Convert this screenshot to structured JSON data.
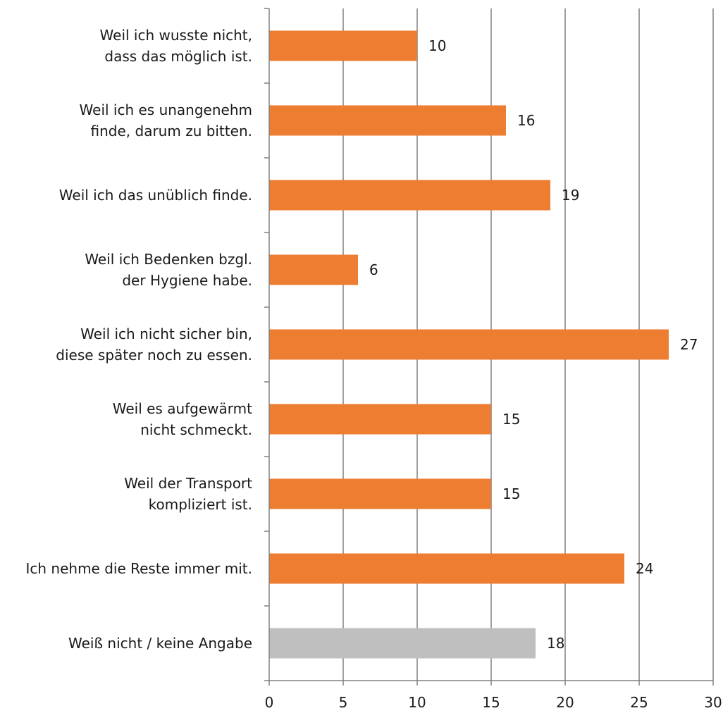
{
  "chart_data": {
    "type": "bar",
    "orientation": "horizontal",
    "categories": [
      [
        "Weil ich wusste nicht,",
        "dass das möglich ist."
      ],
      [
        "Weil ich es unangenehm",
        "finde, darum zu bitten."
      ],
      [
        "Weil ich das unüblich finde."
      ],
      [
        "Weil ich Bedenken bzgl.",
        "der Hygiene habe."
      ],
      [
        "Weil ich nicht sicher bin,",
        "diese später noch zu essen."
      ],
      [
        "Weil es aufgewärmt",
        "nicht schmeckt."
      ],
      [
        "Weil der Transport",
        "kompliziert ist."
      ],
      [
        "Ich nehme die Reste immer mit."
      ],
      [
        "Weiß nicht / keine Angabe"
      ]
    ],
    "values": [
      10,
      16,
      19,
      6,
      27,
      15,
      15,
      24,
      18
    ],
    "bar_colors": [
      "#ED7D31",
      "#ED7D31",
      "#ED7D31",
      "#ED7D31",
      "#ED7D31",
      "#ED7D31",
      "#ED7D31",
      "#ED7D31",
      "#BFBFBF"
    ],
    "data_labels": [
      "10",
      "16",
      "19",
      "6",
      "27",
      "15",
      "15",
      "24",
      "18"
    ],
    "xlim": [
      0,
      30
    ],
    "xticks": [
      0,
      5,
      10,
      15,
      20,
      25,
      30
    ],
    "grid": "vertical",
    "gridline_color": "#808080",
    "legend": "none",
    "title": "",
    "xlabel": "",
    "ylabel": ""
  }
}
